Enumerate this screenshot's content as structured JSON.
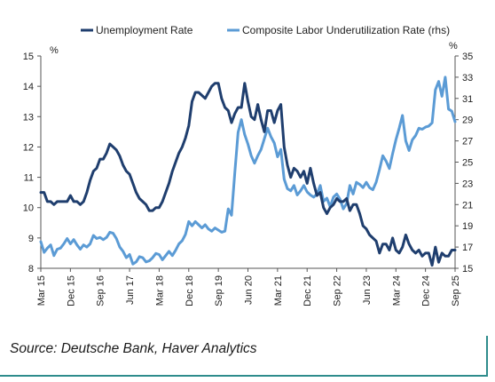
{
  "chart_data": {
    "type": "line",
    "legend_position": "top",
    "grid": false,
    "left_axis": {
      "unit": "%",
      "ylim": [
        8,
        15
      ],
      "ticks": [
        8,
        9,
        10,
        11,
        12,
        13,
        14,
        15
      ]
    },
    "right_axis": {
      "unit": "%",
      "ylim": [
        15,
        35
      ],
      "ticks": [
        15,
        17,
        19,
        21,
        23,
        25,
        27,
        29,
        31,
        33,
        35
      ]
    },
    "xlim": [
      "2015-03",
      "2025-09"
    ],
    "x_ticks": [
      {
        "label": "Mar 15",
        "date": "2015-03"
      },
      {
        "label": "Dec 15",
        "date": "2015-12"
      },
      {
        "label": "Sep 16",
        "date": "2016-09"
      },
      {
        "label": "Jun 17",
        "date": "2017-06"
      },
      {
        "label": "Mar 18",
        "date": "2018-03"
      },
      {
        "label": "Dec 18",
        "date": "2018-12"
      },
      {
        "label": "Sep 19",
        "date": "2019-09"
      },
      {
        "label": "Jun 20",
        "date": "2020-06"
      },
      {
        "label": "Mar 21",
        "date": "2021-03"
      },
      {
        "label": "Dec 21",
        "date": "2021-12"
      },
      {
        "label": "Sep 22",
        "date": "2022-09"
      },
      {
        "label": "Jun 23",
        "date": "2023-06"
      },
      {
        "label": "Mar 24",
        "date": "2024-03"
      },
      {
        "label": "Dec 24",
        "date": "2024-12"
      },
      {
        "label": "Sep 25",
        "date": "2025-09"
      }
    ],
    "series": [
      {
        "name": "Unemployment Rate",
        "axis": "left",
        "color": "#1f3e6e",
        "points": [
          [
            "2015-03",
            10.5
          ],
          [
            "2015-04",
            10.5
          ],
          [
            "2015-05",
            10.2
          ],
          [
            "2015-06",
            10.2
          ],
          [
            "2015-07",
            10.1
          ],
          [
            "2015-08",
            10.2
          ],
          [
            "2015-09",
            10.2
          ],
          [
            "2015-10",
            10.2
          ],
          [
            "2015-11",
            10.2
          ],
          [
            "2015-12",
            10.4
          ],
          [
            "2016-01",
            10.2
          ],
          [
            "2016-02",
            10.2
          ],
          [
            "2016-03",
            10.1
          ],
          [
            "2016-04",
            10.2
          ],
          [
            "2016-05",
            10.5
          ],
          [
            "2016-06",
            10.9
          ],
          [
            "2016-07",
            11.2
          ],
          [
            "2016-08",
            11.3
          ],
          [
            "2016-09",
            11.6
          ],
          [
            "2016-10",
            11.6
          ],
          [
            "2016-11",
            11.8
          ],
          [
            "2016-12",
            12.1
          ],
          [
            "2017-01",
            12.0
          ],
          [
            "2017-02",
            11.9
          ],
          [
            "2017-03",
            11.7
          ],
          [
            "2017-04",
            11.4
          ],
          [
            "2017-05",
            11.2
          ],
          [
            "2017-06",
            11.1
          ],
          [
            "2017-07",
            10.8
          ],
          [
            "2017-08",
            10.5
          ],
          [
            "2017-09",
            10.3
          ],
          [
            "2017-10",
            10.2
          ],
          [
            "2017-11",
            10.1
          ],
          [
            "2017-12",
            9.9
          ],
          [
            "2018-01",
            9.9
          ],
          [
            "2018-02",
            10.0
          ],
          [
            "2018-03",
            10.0
          ],
          [
            "2018-04",
            10.2
          ],
          [
            "2018-05",
            10.5
          ],
          [
            "2018-06",
            10.8
          ],
          [
            "2018-07",
            11.2
          ],
          [
            "2018-08",
            11.5
          ],
          [
            "2018-09",
            11.8
          ],
          [
            "2018-10",
            12.0
          ],
          [
            "2018-11",
            12.3
          ],
          [
            "2018-12",
            12.7
          ],
          [
            "2019-01",
            13.5
          ],
          [
            "2019-02",
            13.8
          ],
          [
            "2019-03",
            13.8
          ],
          [
            "2019-04",
            13.7
          ],
          [
            "2019-05",
            13.6
          ],
          [
            "2019-06",
            13.8
          ],
          [
            "2019-07",
            14.0
          ],
          [
            "2019-08",
            14.1
          ],
          [
            "2019-09",
            14.1
          ],
          [
            "2019-10",
            13.6
          ],
          [
            "2019-11",
            13.3
          ],
          [
            "2019-12",
            13.2
          ],
          [
            "2020-01",
            12.8
          ],
          [
            "2020-02",
            13.1
          ],
          [
            "2020-03",
            13.3
          ],
          [
            "2020-04",
            13.3
          ],
          [
            "2020-05",
            14.1
          ],
          [
            "2020-06",
            13.5
          ],
          [
            "2020-07",
            13.0
          ],
          [
            "2020-08",
            12.9
          ],
          [
            "2020-09",
            13.4
          ],
          [
            "2020-10",
            12.9
          ],
          [
            "2020-11",
            12.5
          ],
          [
            "2020-12",
            13.2
          ],
          [
            "2021-01",
            13.2
          ],
          [
            "2021-02",
            12.8
          ],
          [
            "2021-03",
            13.2
          ],
          [
            "2021-04",
            13.4
          ],
          [
            "2021-05",
            12.0
          ],
          [
            "2021-06",
            11.4
          ],
          [
            "2021-07",
            11.0
          ],
          [
            "2021-08",
            11.3
          ],
          [
            "2021-09",
            11.2
          ],
          [
            "2021-10",
            11.0
          ],
          [
            "2021-11",
            11.2
          ],
          [
            "2021-12",
            10.8
          ],
          [
            "2022-01",
            11.3
          ],
          [
            "2022-02",
            10.8
          ],
          [
            "2022-03",
            10.4
          ],
          [
            "2022-04",
            10.5
          ],
          [
            "2022-05",
            10.0
          ],
          [
            "2022-06",
            9.8
          ],
          [
            "2022-07",
            10.0
          ],
          [
            "2022-08",
            10.1
          ],
          [
            "2022-09",
            10.3
          ],
          [
            "2022-10",
            10.2
          ],
          [
            "2022-11",
            10.2
          ],
          [
            "2022-12",
            10.3
          ],
          [
            "2023-01",
            9.9
          ],
          [
            "2023-02",
            10.1
          ],
          [
            "2023-03",
            10.1
          ],
          [
            "2023-04",
            9.8
          ],
          [
            "2023-05",
            9.4
          ],
          [
            "2023-06",
            9.3
          ],
          [
            "2023-07",
            9.1
          ],
          [
            "2023-08",
            9.0
          ],
          [
            "2023-09",
            8.9
          ],
          [
            "2023-10",
            8.5
          ],
          [
            "2023-11",
            8.8
          ],
          [
            "2023-12",
            8.8
          ],
          [
            "2024-01",
            8.6
          ],
          [
            "2024-02",
            9.0
          ],
          [
            "2024-03",
            8.6
          ],
          [
            "2024-04",
            8.5
          ],
          [
            "2024-05",
            8.7
          ],
          [
            "2024-06",
            9.1
          ],
          [
            "2024-07",
            8.8
          ],
          [
            "2024-08",
            8.6
          ],
          [
            "2024-09",
            8.5
          ],
          [
            "2024-10",
            8.6
          ],
          [
            "2024-11",
            8.4
          ],
          [
            "2024-12",
            8.5
          ],
          [
            "2025-01",
            8.5
          ],
          [
            "2025-02",
            8.1
          ],
          [
            "2025-03",
            8.7
          ],
          [
            "2025-04",
            8.2
          ],
          [
            "2025-05",
            8.5
          ],
          [
            "2025-06",
            8.4
          ],
          [
            "2025-07",
            8.4
          ],
          [
            "2025-08",
            8.6
          ],
          [
            "2025-09",
            8.6
          ]
        ]
      },
      {
        "name": "Composite Labor Underutilization Rate (rhs)",
        "axis": "right",
        "color": "#5b9bd5",
        "points": [
          [
            "2015-03",
            17.5
          ],
          [
            "2015-04",
            16.5
          ],
          [
            "2015-05",
            16.9
          ],
          [
            "2015-06",
            17.2
          ],
          [
            "2015-07",
            16.2
          ],
          [
            "2015-08",
            16.8
          ],
          [
            "2015-09",
            16.9
          ],
          [
            "2015-10",
            17.3
          ],
          [
            "2015-11",
            17.8
          ],
          [
            "2015-12",
            17.3
          ],
          [
            "2016-01",
            17.7
          ],
          [
            "2016-02",
            17.2
          ],
          [
            "2016-03",
            16.8
          ],
          [
            "2016-04",
            17.2
          ],
          [
            "2016-05",
            17.0
          ],
          [
            "2016-06",
            17.3
          ],
          [
            "2016-07",
            18.1
          ],
          [
            "2016-08",
            17.8
          ],
          [
            "2016-09",
            17.9
          ],
          [
            "2016-10",
            17.7
          ],
          [
            "2016-11",
            17.9
          ],
          [
            "2016-12",
            18.4
          ],
          [
            "2017-01",
            18.3
          ],
          [
            "2017-02",
            17.8
          ],
          [
            "2017-03",
            17.0
          ],
          [
            "2017-04",
            16.6
          ],
          [
            "2017-05",
            16.0
          ],
          [
            "2017-06",
            16.3
          ],
          [
            "2017-07",
            15.4
          ],
          [
            "2017-08",
            15.6
          ],
          [
            "2017-09",
            16.1
          ],
          [
            "2017-10",
            16.0
          ],
          [
            "2017-11",
            15.6
          ],
          [
            "2017-12",
            15.7
          ],
          [
            "2018-01",
            16.0
          ],
          [
            "2018-02",
            16.4
          ],
          [
            "2018-03",
            16.3
          ],
          [
            "2018-04",
            15.8
          ],
          [
            "2018-05",
            16.2
          ],
          [
            "2018-06",
            16.6
          ],
          [
            "2018-07",
            16.2
          ],
          [
            "2018-08",
            16.7
          ],
          [
            "2018-09",
            17.3
          ],
          [
            "2018-10",
            17.6
          ],
          [
            "2018-11",
            18.2
          ],
          [
            "2018-12",
            19.4
          ],
          [
            "2019-01",
            19.0
          ],
          [
            "2019-02",
            19.4
          ],
          [
            "2019-03",
            19.1
          ],
          [
            "2019-04",
            18.8
          ],
          [
            "2019-05",
            19.1
          ],
          [
            "2019-06",
            18.7
          ],
          [
            "2019-07",
            18.5
          ],
          [
            "2019-08",
            18.8
          ],
          [
            "2019-09",
            18.6
          ],
          [
            "2019-10",
            18.4
          ],
          [
            "2019-11",
            18.5
          ],
          [
            "2019-12",
            20.6
          ],
          [
            "2020-01",
            20.0
          ],
          [
            "2020-02",
            24.0
          ],
          [
            "2020-03",
            27.8
          ],
          [
            "2020-04",
            29.0
          ],
          [
            "2020-05",
            27.6
          ],
          [
            "2020-06",
            26.7
          ],
          [
            "2020-07",
            25.6
          ],
          [
            "2020-08",
            24.9
          ],
          [
            "2020-09",
            25.6
          ],
          [
            "2020-10",
            26.2
          ],
          [
            "2020-11",
            27.2
          ],
          [
            "2020-12",
            28.2
          ],
          [
            "2021-01",
            27.4
          ],
          [
            "2021-02",
            26.8
          ],
          [
            "2021-03",
            25.5
          ],
          [
            "2021-04",
            26.2
          ],
          [
            "2021-05",
            23.4
          ],
          [
            "2021-06",
            22.5
          ],
          [
            "2021-07",
            22.3
          ],
          [
            "2021-08",
            22.8
          ],
          [
            "2021-09",
            21.9
          ],
          [
            "2021-10",
            22.3
          ],
          [
            "2021-11",
            22.8
          ],
          [
            "2021-12",
            22.2
          ],
          [
            "2022-01",
            21.9
          ],
          [
            "2022-02",
            21.7
          ],
          [
            "2022-03",
            22.0
          ],
          [
            "2022-04",
            22.8
          ],
          [
            "2022-05",
            21.3
          ],
          [
            "2022-06",
            21.6
          ],
          [
            "2022-07",
            20.8
          ],
          [
            "2022-08",
            21.7
          ],
          [
            "2022-09",
            22.0
          ],
          [
            "2022-10",
            21.5
          ],
          [
            "2022-11",
            20.6
          ],
          [
            "2022-12",
            21.1
          ],
          [
            "2023-01",
            22.8
          ],
          [
            "2023-02",
            22.0
          ],
          [
            "2023-03",
            23.1
          ],
          [
            "2023-04",
            22.9
          ],
          [
            "2023-05",
            22.6
          ],
          [
            "2023-06",
            23.1
          ],
          [
            "2023-07",
            22.6
          ],
          [
            "2023-08",
            22.4
          ],
          [
            "2023-09",
            23.1
          ],
          [
            "2023-10",
            24.3
          ],
          [
            "2023-11",
            25.6
          ],
          [
            "2023-12",
            25.1
          ],
          [
            "2024-01",
            24.4
          ],
          [
            "2024-02",
            25.8
          ],
          [
            "2024-03",
            27.1
          ],
          [
            "2024-04",
            28.2
          ],
          [
            "2024-05",
            29.4
          ],
          [
            "2024-06",
            27.0
          ],
          [
            "2024-07",
            26.1
          ],
          [
            "2024-08",
            27.1
          ],
          [
            "2024-09",
            27.5
          ],
          [
            "2024-10",
            28.2
          ],
          [
            "2024-11",
            28.1
          ],
          [
            "2024-12",
            28.3
          ],
          [
            "2025-01",
            28.4
          ],
          [
            "2025-02",
            28.7
          ],
          [
            "2025-03",
            31.8
          ],
          [
            "2025-04",
            32.6
          ],
          [
            "2025-05",
            31.2
          ],
          [
            "2025-06",
            33.0
          ],
          [
            "2025-07",
            30.0
          ],
          [
            "2025-08",
            29.8
          ],
          [
            "2025-09",
            28.8
          ]
        ]
      }
    ]
  },
  "source_text": "Source: Deutsche Bank, Haver Analytics"
}
